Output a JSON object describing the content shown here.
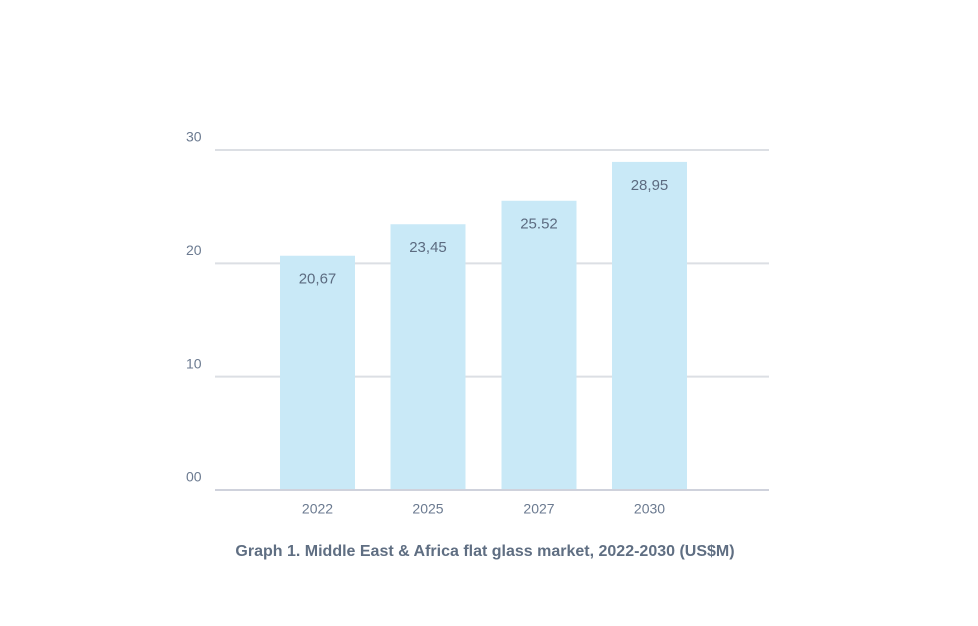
{
  "caption": "Graph 1. Middle East & Africa flat glass market, 2022-2030 (US$M)",
  "colors": {
    "bar": "#c9e9f7",
    "grid": "#dcdfe4",
    "axis": "#cfd2dc",
    "tick_text": "#6b7a90",
    "data_label_text": "#5c6b80"
  },
  "chart_data": {
    "type": "bar",
    "categories": [
      "2022",
      "2025",
      "2027",
      "2030"
    ],
    "values": [
      20.67,
      23.45,
      25.52,
      28.95
    ],
    "value_labels": [
      "20,67",
      "23,45",
      "25.52",
      "28,95"
    ],
    "y_ticks": [
      {
        "value": 0,
        "label": "00"
      },
      {
        "value": 10,
        "label": "10"
      },
      {
        "value": 20,
        "label": "20"
      },
      {
        "value": 30,
        "label": "30"
      }
    ],
    "ylim": [
      0,
      30
    ],
    "grid": true,
    "title": "Graph 1. Middle East & Africa flat glass market, 2022-2030 (US$M)",
    "xlabel": "",
    "ylabel": ""
  }
}
